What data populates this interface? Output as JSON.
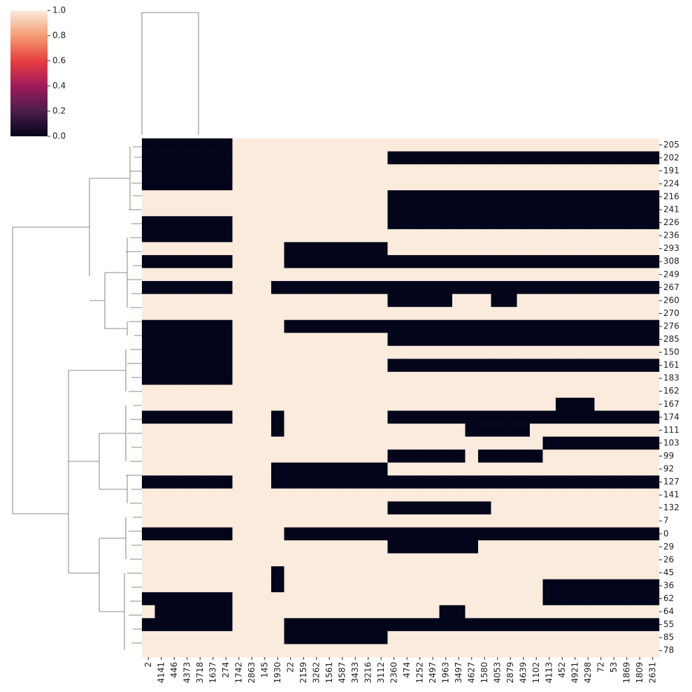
{
  "chart_data": {
    "type": "heatmap",
    "rows": [
      "205",
      "202",
      "191",
      "224",
      "216",
      "241",
      "226",
      "236",
      "293",
      "308",
      "249",
      "267",
      "260",
      "270",
      "276",
      "285",
      "150",
      "161",
      "183",
      "162",
      "167",
      "174",
      "111",
      "103",
      "99",
      "92",
      "127",
      "141",
      "132",
      "7",
      "0",
      "29",
      "26",
      "45",
      "36",
      "62",
      "64",
      "55",
      "85",
      "78"
    ],
    "columns": [
      "2",
      "4141",
      "446",
      "4373",
      "3718",
      "1637",
      "274",
      "1742",
      "2863",
      "145",
      "1930",
      "22",
      "2159",
      "3262",
      "1561",
      "4587",
      "3433",
      "3216",
      "3112",
      "2360",
      "474",
      "1252",
      "2497",
      "1963",
      "3497",
      "4627",
      "1580",
      "4053",
      "2879",
      "4639",
      "1102",
      "4113",
      "452",
      "4921",
      "4298",
      "72",
      "53",
      "1869",
      "1809",
      "2631"
    ],
    "values": [
      [
        0,
        0,
        0,
        0,
        0,
        0,
        0,
        1,
        1,
        1,
        1,
        1,
        1,
        1,
        1,
        1,
        1,
        1,
        1,
        1,
        1,
        1,
        1,
        1,
        1,
        1,
        1,
        1,
        1,
        1,
        1,
        1,
        1,
        1,
        1,
        1,
        1,
        1,
        1,
        1
      ],
      [
        0,
        0,
        0,
        0,
        0,
        0,
        0,
        1,
        1,
        1,
        1,
        1,
        1,
        1,
        1,
        1,
        1,
        1,
        1,
        0,
        0,
        0,
        0,
        0,
        0,
        0,
        0,
        0,
        0,
        0,
        0,
        0,
        0,
        0,
        0,
        0,
        0,
        0,
        0,
        0
      ],
      [
        0,
        0,
        0,
        0,
        0,
        0,
        0,
        1,
        1,
        1,
        1,
        1,
        1,
        1,
        1,
        1,
        1,
        1,
        1,
        1,
        1,
        1,
        1,
        1,
        1,
        1,
        1,
        1,
        1,
        1,
        1,
        1,
        1,
        1,
        1,
        1,
        1,
        1,
        1,
        1
      ],
      [
        0,
        0,
        0,
        0,
        0,
        0,
        0,
        1,
        1,
        1,
        1,
        1,
        1,
        1,
        1,
        1,
        1,
        1,
        1,
        1,
        1,
        1,
        1,
        1,
        1,
        1,
        1,
        1,
        1,
        1,
        1,
        1,
        1,
        1,
        1,
        1,
        1,
        1,
        1,
        1
      ],
      [
        1,
        1,
        1,
        1,
        1,
        1,
        1,
        1,
        1,
        1,
        1,
        1,
        1,
        1,
        1,
        1,
        1,
        1,
        1,
        0,
        0,
        0,
        0,
        0,
        0,
        0,
        0,
        0,
        0,
        0,
        0,
        0,
        0,
        0,
        0,
        0,
        0,
        0,
        0,
        0
      ],
      [
        1,
        1,
        1,
        1,
        1,
        1,
        1,
        1,
        1,
        1,
        1,
        1,
        1,
        1,
        1,
        1,
        1,
        1,
        1,
        0,
        0,
        0,
        0,
        0,
        0,
        0,
        0,
        0,
        0,
        0,
        0,
        0,
        0,
        0,
        0,
        0,
        0,
        0,
        0,
        0
      ],
      [
        0,
        0,
        0,
        0,
        0,
        0,
        0,
        1,
        1,
        1,
        1,
        1,
        1,
        1,
        1,
        1,
        1,
        1,
        1,
        0,
        0,
        0,
        0,
        0,
        0,
        0,
        0,
        0,
        0,
        0,
        0,
        0,
        0,
        0,
        0,
        0,
        0,
        0,
        0,
        0
      ],
      [
        0,
        0,
        0,
        0,
        0,
        0,
        0,
        1,
        1,
        1,
        1,
        1,
        1,
        1,
        1,
        1,
        1,
        1,
        1,
        1,
        1,
        1,
        1,
        1,
        1,
        1,
        1,
        1,
        1,
        1,
        1,
        1,
        1,
        1,
        1,
        1,
        1,
        1,
        1,
        1
      ],
      [
        1,
        1,
        1,
        1,
        1,
        1,
        1,
        1,
        1,
        1,
        1,
        0,
        0,
        0,
        0,
        0,
        0,
        0,
        0,
        1,
        1,
        1,
        1,
        1,
        1,
        1,
        1,
        1,
        1,
        1,
        1,
        1,
        1,
        1,
        1,
        1,
        1,
        1,
        1,
        1
      ],
      [
        0,
        0,
        0,
        0,
        0,
        0,
        0,
        1,
        1,
        1,
        1,
        0,
        0,
        0,
        0,
        0,
        0,
        0,
        0,
        0,
        0,
        0,
        0,
        0,
        0,
        0,
        0,
        0,
        0,
        0,
        0,
        0,
        0,
        0,
        0,
        0,
        0,
        0,
        0,
        0
      ],
      [
        1,
        1,
        1,
        1,
        1,
        1,
        1,
        1,
        1,
        1,
        1,
        1,
        1,
        1,
        1,
        1,
        1,
        1,
        1,
        1,
        1,
        1,
        1,
        1,
        1,
        1,
        1,
        1,
        1,
        1,
        1,
        1,
        1,
        1,
        1,
        1,
        1,
        1,
        1,
        1
      ],
      [
        0,
        0,
        0,
        0,
        0,
        0,
        0,
        1,
        1,
        1,
        0,
        0,
        0,
        0,
        0,
        0,
        0,
        0,
        0,
        0,
        0,
        0,
        0,
        0,
        0,
        0,
        0,
        0,
        0,
        0,
        0,
        0,
        0,
        0,
        0,
        0,
        0,
        0,
        0,
        0
      ],
      [
        1,
        1,
        1,
        1,
        1,
        1,
        1,
        1,
        1,
        1,
        1,
        1,
        1,
        1,
        1,
        1,
        1,
        1,
        1,
        0,
        0,
        0,
        0,
        0,
        1,
        1,
        1,
        0,
        0,
        1,
        1,
        1,
        1,
        1,
        1,
        1,
        1,
        1,
        1,
        1
      ],
      [
        1,
        1,
        1,
        1,
        1,
        1,
        1,
        1,
        1,
        1,
        1,
        1,
        1,
        1,
        1,
        1,
        1,
        1,
        1,
        1,
        1,
        1,
        1,
        1,
        1,
        1,
        1,
        1,
        1,
        1,
        1,
        1,
        1,
        1,
        1,
        1,
        1,
        1,
        1,
        1
      ],
      [
        0,
        0,
        0,
        0,
        0,
        0,
        0,
        1,
        1,
        1,
        1,
        0,
        0,
        0,
        0,
        0,
        0,
        0,
        0,
        0,
        0,
        0,
        0,
        0,
        0,
        0,
        0,
        0,
        0,
        0,
        0,
        0,
        0,
        0,
        0,
        0,
        0,
        0,
        0,
        0
      ],
      [
        0,
        0,
        0,
        0,
        0,
        0,
        0,
        1,
        1,
        1,
        1,
        1,
        1,
        1,
        1,
        1,
        1,
        1,
        1,
        0,
        0,
        0,
        0,
        0,
        0,
        0,
        0,
        0,
        0,
        0,
        0,
        0,
        0,
        0,
        0,
        0,
        0,
        0,
        0,
        0
      ],
      [
        0,
        0,
        0,
        0,
        0,
        0,
        0,
        1,
        1,
        1,
        1,
        1,
        1,
        1,
        1,
        1,
        1,
        1,
        1,
        1,
        1,
        1,
        1,
        1,
        1,
        1,
        1,
        1,
        1,
        1,
        1,
        1,
        1,
        1,
        1,
        1,
        1,
        1,
        1,
        1
      ],
      [
        0,
        0,
        0,
        0,
        0,
        0,
        0,
        1,
        1,
        1,
        1,
        1,
        1,
        1,
        1,
        1,
        1,
        1,
        1,
        0,
        0,
        0,
        0,
        0,
        0,
        0,
        0,
        0,
        0,
        0,
        0,
        0,
        0,
        0,
        0,
        0,
        0,
        0,
        0,
        0
      ],
      [
        0,
        0,
        0,
        0,
        0,
        0,
        0,
        1,
        1,
        1,
        1,
        1,
        1,
        1,
        1,
        1,
        1,
        1,
        1,
        1,
        1,
        1,
        1,
        1,
        1,
        1,
        1,
        1,
        1,
        1,
        1,
        1,
        1,
        1,
        1,
        1,
        1,
        1,
        1,
        1
      ],
      [
        1,
        1,
        1,
        1,
        1,
        1,
        1,
        1,
        1,
        1,
        1,
        1,
        1,
        1,
        1,
        1,
        1,
        1,
        1,
        1,
        1,
        1,
        1,
        1,
        1,
        1,
        1,
        1,
        1,
        1,
        1,
        1,
        1,
        1,
        1,
        1,
        1,
        1,
        1,
        1
      ],
      [
        1,
        1,
        1,
        1,
        1,
        1,
        1,
        1,
        1,
        1,
        1,
        1,
        1,
        1,
        1,
        1,
        1,
        1,
        1,
        1,
        1,
        1,
        1,
        1,
        1,
        1,
        1,
        1,
        1,
        1,
        1,
        1,
        0,
        0,
        0,
        1,
        1,
        1,
        1,
        1
      ],
      [
        0,
        0,
        0,
        0,
        0,
        0,
        0,
        1,
        1,
        1,
        0,
        1,
        1,
        1,
        1,
        1,
        1,
        1,
        1,
        0,
        0,
        0,
        0,
        0,
        0,
        0,
        0,
        0,
        0,
        0,
        0,
        0,
        0,
        0,
        0,
        0,
        0,
        0,
        0,
        0
      ],
      [
        1,
        1,
        1,
        1,
        1,
        1,
        1,
        1,
        1,
        1,
        0,
        1,
        1,
        1,
        1,
        1,
        1,
        1,
        1,
        1,
        1,
        1,
        1,
        1,
        1,
        0,
        0,
        0,
        0,
        0,
        1,
        1,
        1,
        1,
        1,
        1,
        1,
        1,
        1,
        1
      ],
      [
        1,
        1,
        1,
        1,
        1,
        1,
        1,
        1,
        1,
        1,
        1,
        1,
        1,
        1,
        1,
        1,
        1,
        1,
        1,
        1,
        1,
        1,
        1,
        1,
        1,
        1,
        1,
        1,
        1,
        1,
        1,
        0,
        0,
        0,
        0,
        0,
        0,
        0,
        0,
        0
      ],
      [
        1,
        1,
        1,
        1,
        1,
        1,
        1,
        1,
        1,
        1,
        1,
        1,
        1,
        1,
        1,
        1,
        1,
        1,
        1,
        0,
        0,
        0,
        0,
        0,
        0,
        1,
        0,
        0,
        0,
        0,
        0,
        1,
        1,
        1,
        1,
        1,
        1,
        1,
        1,
        1
      ],
      [
        1,
        1,
        1,
        1,
        1,
        1,
        1,
        1,
        1,
        1,
        0,
        0,
        0,
        0,
        0,
        0,
        0,
        0,
        0,
        1,
        1,
        1,
        1,
        1,
        1,
        1,
        1,
        1,
        1,
        1,
        1,
        1,
        1,
        1,
        1,
        1,
        1,
        1,
        1,
        1
      ],
      [
        0,
        0,
        0,
        0,
        0,
        0,
        0,
        1,
        1,
        1,
        0,
        0,
        0,
        0,
        0,
        0,
        0,
        0,
        0,
        0,
        0,
        0,
        0,
        0,
        0,
        0,
        0,
        0,
        0,
        0,
        0,
        0,
        0,
        0,
        0,
        0,
        0,
        0,
        0,
        0
      ],
      [
        1,
        1,
        1,
        1,
        1,
        1,
        1,
        1,
        1,
        1,
        1,
        1,
        1,
        1,
        1,
        1,
        1,
        1,
        1,
        1,
        1,
        1,
        1,
        1,
        1,
        1,
        1,
        1,
        1,
        1,
        1,
        1,
        1,
        1,
        1,
        1,
        1,
        1,
        1,
        1
      ],
      [
        1,
        1,
        1,
        1,
        1,
        1,
        1,
        1,
        1,
        1,
        1,
        1,
        1,
        1,
        1,
        1,
        1,
        1,
        1,
        0,
        0,
        0,
        0,
        0,
        0,
        0,
        0,
        1,
        1,
        1,
        1,
        1,
        1,
        1,
        1,
        1,
        1,
        1,
        1,
        1
      ],
      [
        1,
        1,
        1,
        1,
        1,
        1,
        1,
        1,
        1,
        1,
        1,
        1,
        1,
        1,
        1,
        1,
        1,
        1,
        1,
        1,
        1,
        1,
        1,
        1,
        1,
        1,
        1,
        1,
        1,
        1,
        1,
        1,
        1,
        1,
        1,
        1,
        1,
        1,
        1,
        1
      ],
      [
        0,
        0,
        0,
        0,
        0,
        0,
        0,
        1,
        1,
        1,
        1,
        0,
        0,
        0,
        0,
        0,
        0,
        0,
        0,
        0,
        0,
        0,
        0,
        0,
        0,
        0,
        0,
        0,
        0,
        0,
        0,
        0,
        0,
        0,
        0,
        0,
        0,
        0,
        0,
        0
      ],
      [
        1,
        1,
        1,
        1,
        1,
        1,
        1,
        1,
        1,
        1,
        1,
        1,
        1,
        1,
        1,
        1,
        1,
        1,
        1,
        0,
        0,
        0,
        0,
        0,
        0,
        0,
        1,
        1,
        1,
        1,
        1,
        1,
        1,
        1,
        1,
        1,
        1,
        1,
        1,
        1
      ],
      [
        1,
        1,
        1,
        1,
        1,
        1,
        1,
        1,
        1,
        1,
        1,
        1,
        1,
        1,
        1,
        1,
        1,
        1,
        1,
        1,
        1,
        1,
        1,
        1,
        1,
        1,
        1,
        1,
        1,
        1,
        1,
        1,
        1,
        1,
        1,
        1,
        1,
        1,
        1,
        1
      ],
      [
        1,
        1,
        1,
        1,
        1,
        1,
        1,
        1,
        1,
        1,
        0,
        1,
        1,
        1,
        1,
        1,
        1,
        1,
        1,
        1,
        1,
        1,
        1,
        1,
        1,
        1,
        1,
        1,
        1,
        1,
        1,
        1,
        1,
        1,
        1,
        1,
        1,
        1,
        1,
        1
      ],
      [
        1,
        1,
        1,
        1,
        1,
        1,
        1,
        1,
        1,
        1,
        0,
        1,
        1,
        1,
        1,
        1,
        1,
        1,
        1,
        1,
        1,
        1,
        1,
        1,
        1,
        1,
        1,
        1,
        1,
        1,
        1,
        0,
        0,
        0,
        0,
        0,
        0,
        0,
        0,
        0
      ],
      [
        0,
        0,
        0,
        0,
        0,
        0,
        0,
        1,
        1,
        1,
        1,
        1,
        1,
        1,
        1,
        1,
        1,
        1,
        1,
        1,
        1,
        1,
        1,
        1,
        1,
        1,
        1,
        1,
        1,
        1,
        1,
        0,
        0,
        0,
        0,
        0,
        0,
        0,
        0,
        0
      ],
      [
        1,
        0,
        0,
        0,
        0,
        0,
        0,
        1,
        1,
        1,
        1,
        1,
        1,
        1,
        1,
        1,
        1,
        1,
        1,
        1,
        1,
        1,
        1,
        0,
        0,
        1,
        1,
        1,
        1,
        1,
        1,
        1,
        1,
        1,
        1,
        1,
        1,
        1,
        1,
        1
      ],
      [
        0,
        0,
        0,
        0,
        0,
        0,
        0,
        1,
        1,
        1,
        1,
        0,
        0,
        0,
        0,
        0,
        0,
        0,
        0,
        0,
        0,
        0,
        0,
        0,
        0,
        0,
        0,
        0,
        0,
        0,
        0,
        0,
        0,
        0,
        0,
        0,
        0,
        0,
        0,
        0
      ],
      [
        1,
        1,
        1,
        1,
        1,
        1,
        1,
        1,
        1,
        1,
        1,
        0,
        0,
        0,
        0,
        0,
        0,
        0,
        0,
        1,
        1,
        1,
        1,
        1,
        1,
        1,
        1,
        1,
        1,
        1,
        1,
        1,
        1,
        1,
        1,
        1,
        1,
        1,
        1,
        1
      ],
      [
        1,
        1,
        1,
        1,
        1,
        1,
        1,
        1,
        1,
        1,
        1,
        1,
        1,
        1,
        1,
        1,
        1,
        1,
        1,
        1,
        1,
        1,
        1,
        1,
        1,
        1,
        1,
        1,
        1,
        1,
        1,
        1,
        1,
        1,
        1,
        1,
        1,
        1,
        1,
        1
      ]
    ],
    "colormap": [
      "#03051a",
      "#4c1d4b",
      "#a11a5b",
      "#e83f3f",
      "#f69c73",
      "#faebdd"
    ],
    "clim": [
      0,
      1
    ],
    "cticks": [
      {
        "value": 0,
        "label": "0.0"
      },
      {
        "value": 0.2,
        "label": "0.2"
      },
      {
        "value": 0.4,
        "label": "0.4"
      },
      {
        "value": 0.6,
        "label": "0.6"
      },
      {
        "value": 0.8,
        "label": "0.8"
      },
      {
        "value": 1,
        "label": "1.0"
      }
    ]
  }
}
